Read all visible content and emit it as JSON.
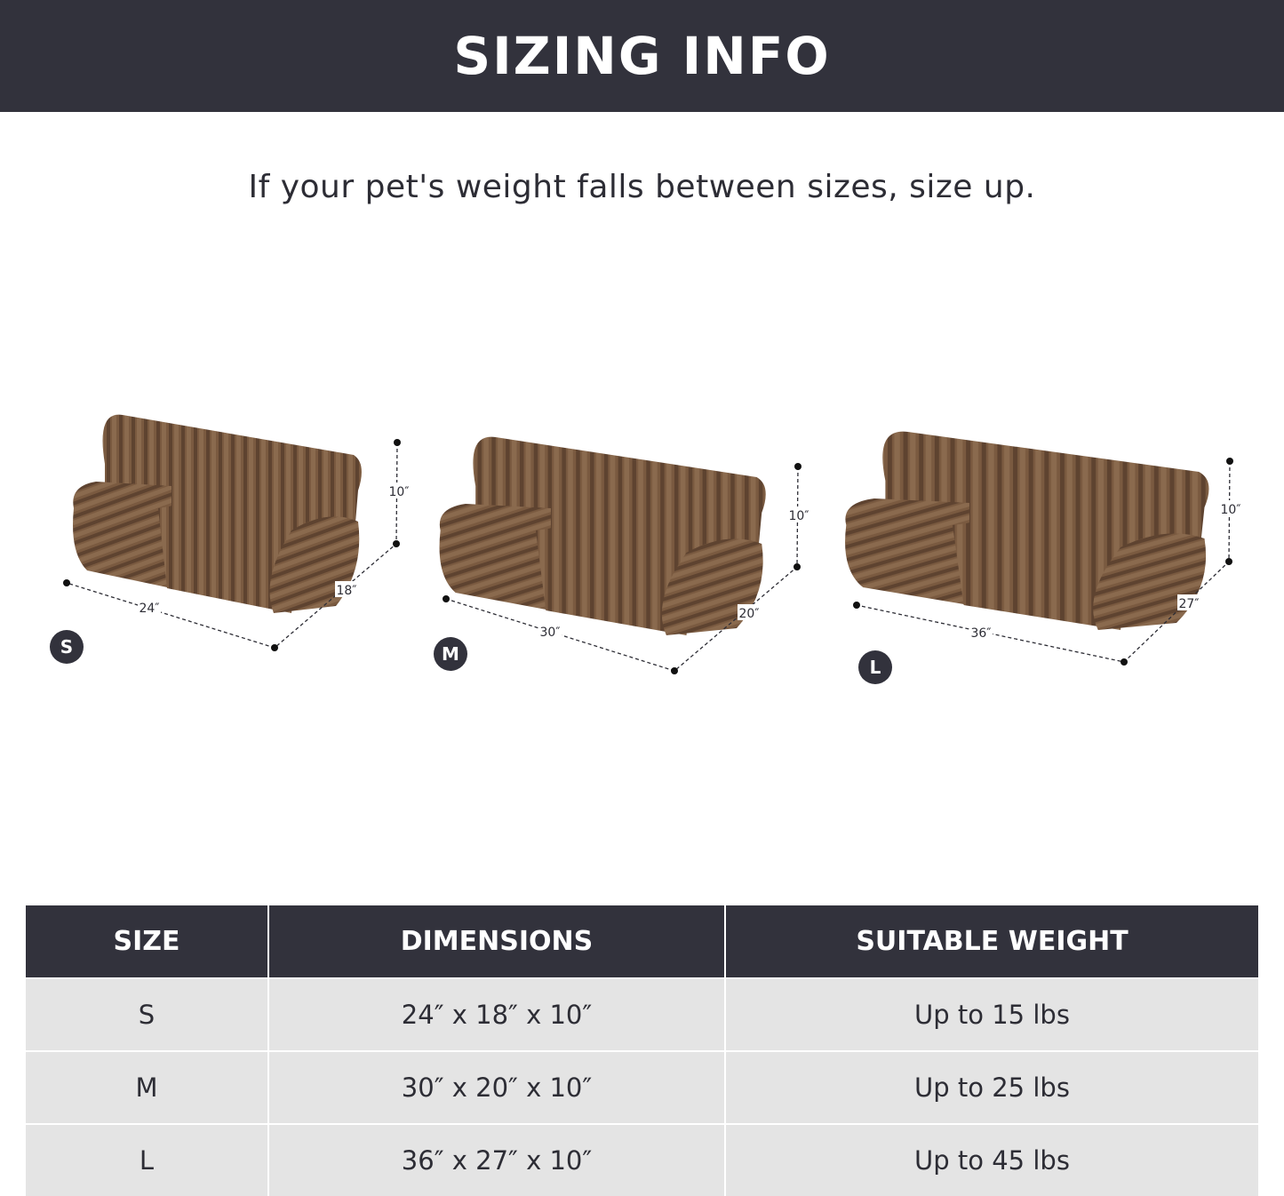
{
  "header": {
    "title": "SIZING INFO"
  },
  "subtitle": "If your pet's weight falls between sizes, size up.",
  "colors": {
    "banner": "#32323c",
    "bed": "#7a5a40",
    "row": "#e4e4e4"
  },
  "beds": [
    {
      "size": "S",
      "width": "24″",
      "depth": "18″",
      "height": "10″"
    },
    {
      "size": "M",
      "width": "30″",
      "depth": "20″",
      "height": "10″"
    },
    {
      "size": "L",
      "width": "36″",
      "depth": "27″",
      "height": "10″"
    }
  ],
  "table": {
    "headers": [
      "SIZE",
      "DIMENSIONS",
      "SUITABLE WEIGHT"
    ],
    "rows": [
      [
        "S",
        "24″ x 18″ x 10″",
        "Up to 15 lbs"
      ],
      [
        "M",
        "30″ x 20″ x 10″",
        "Up to 25 lbs"
      ],
      [
        "L",
        "36″ x 27″ x 10″",
        "Up to 45 lbs"
      ]
    ]
  }
}
